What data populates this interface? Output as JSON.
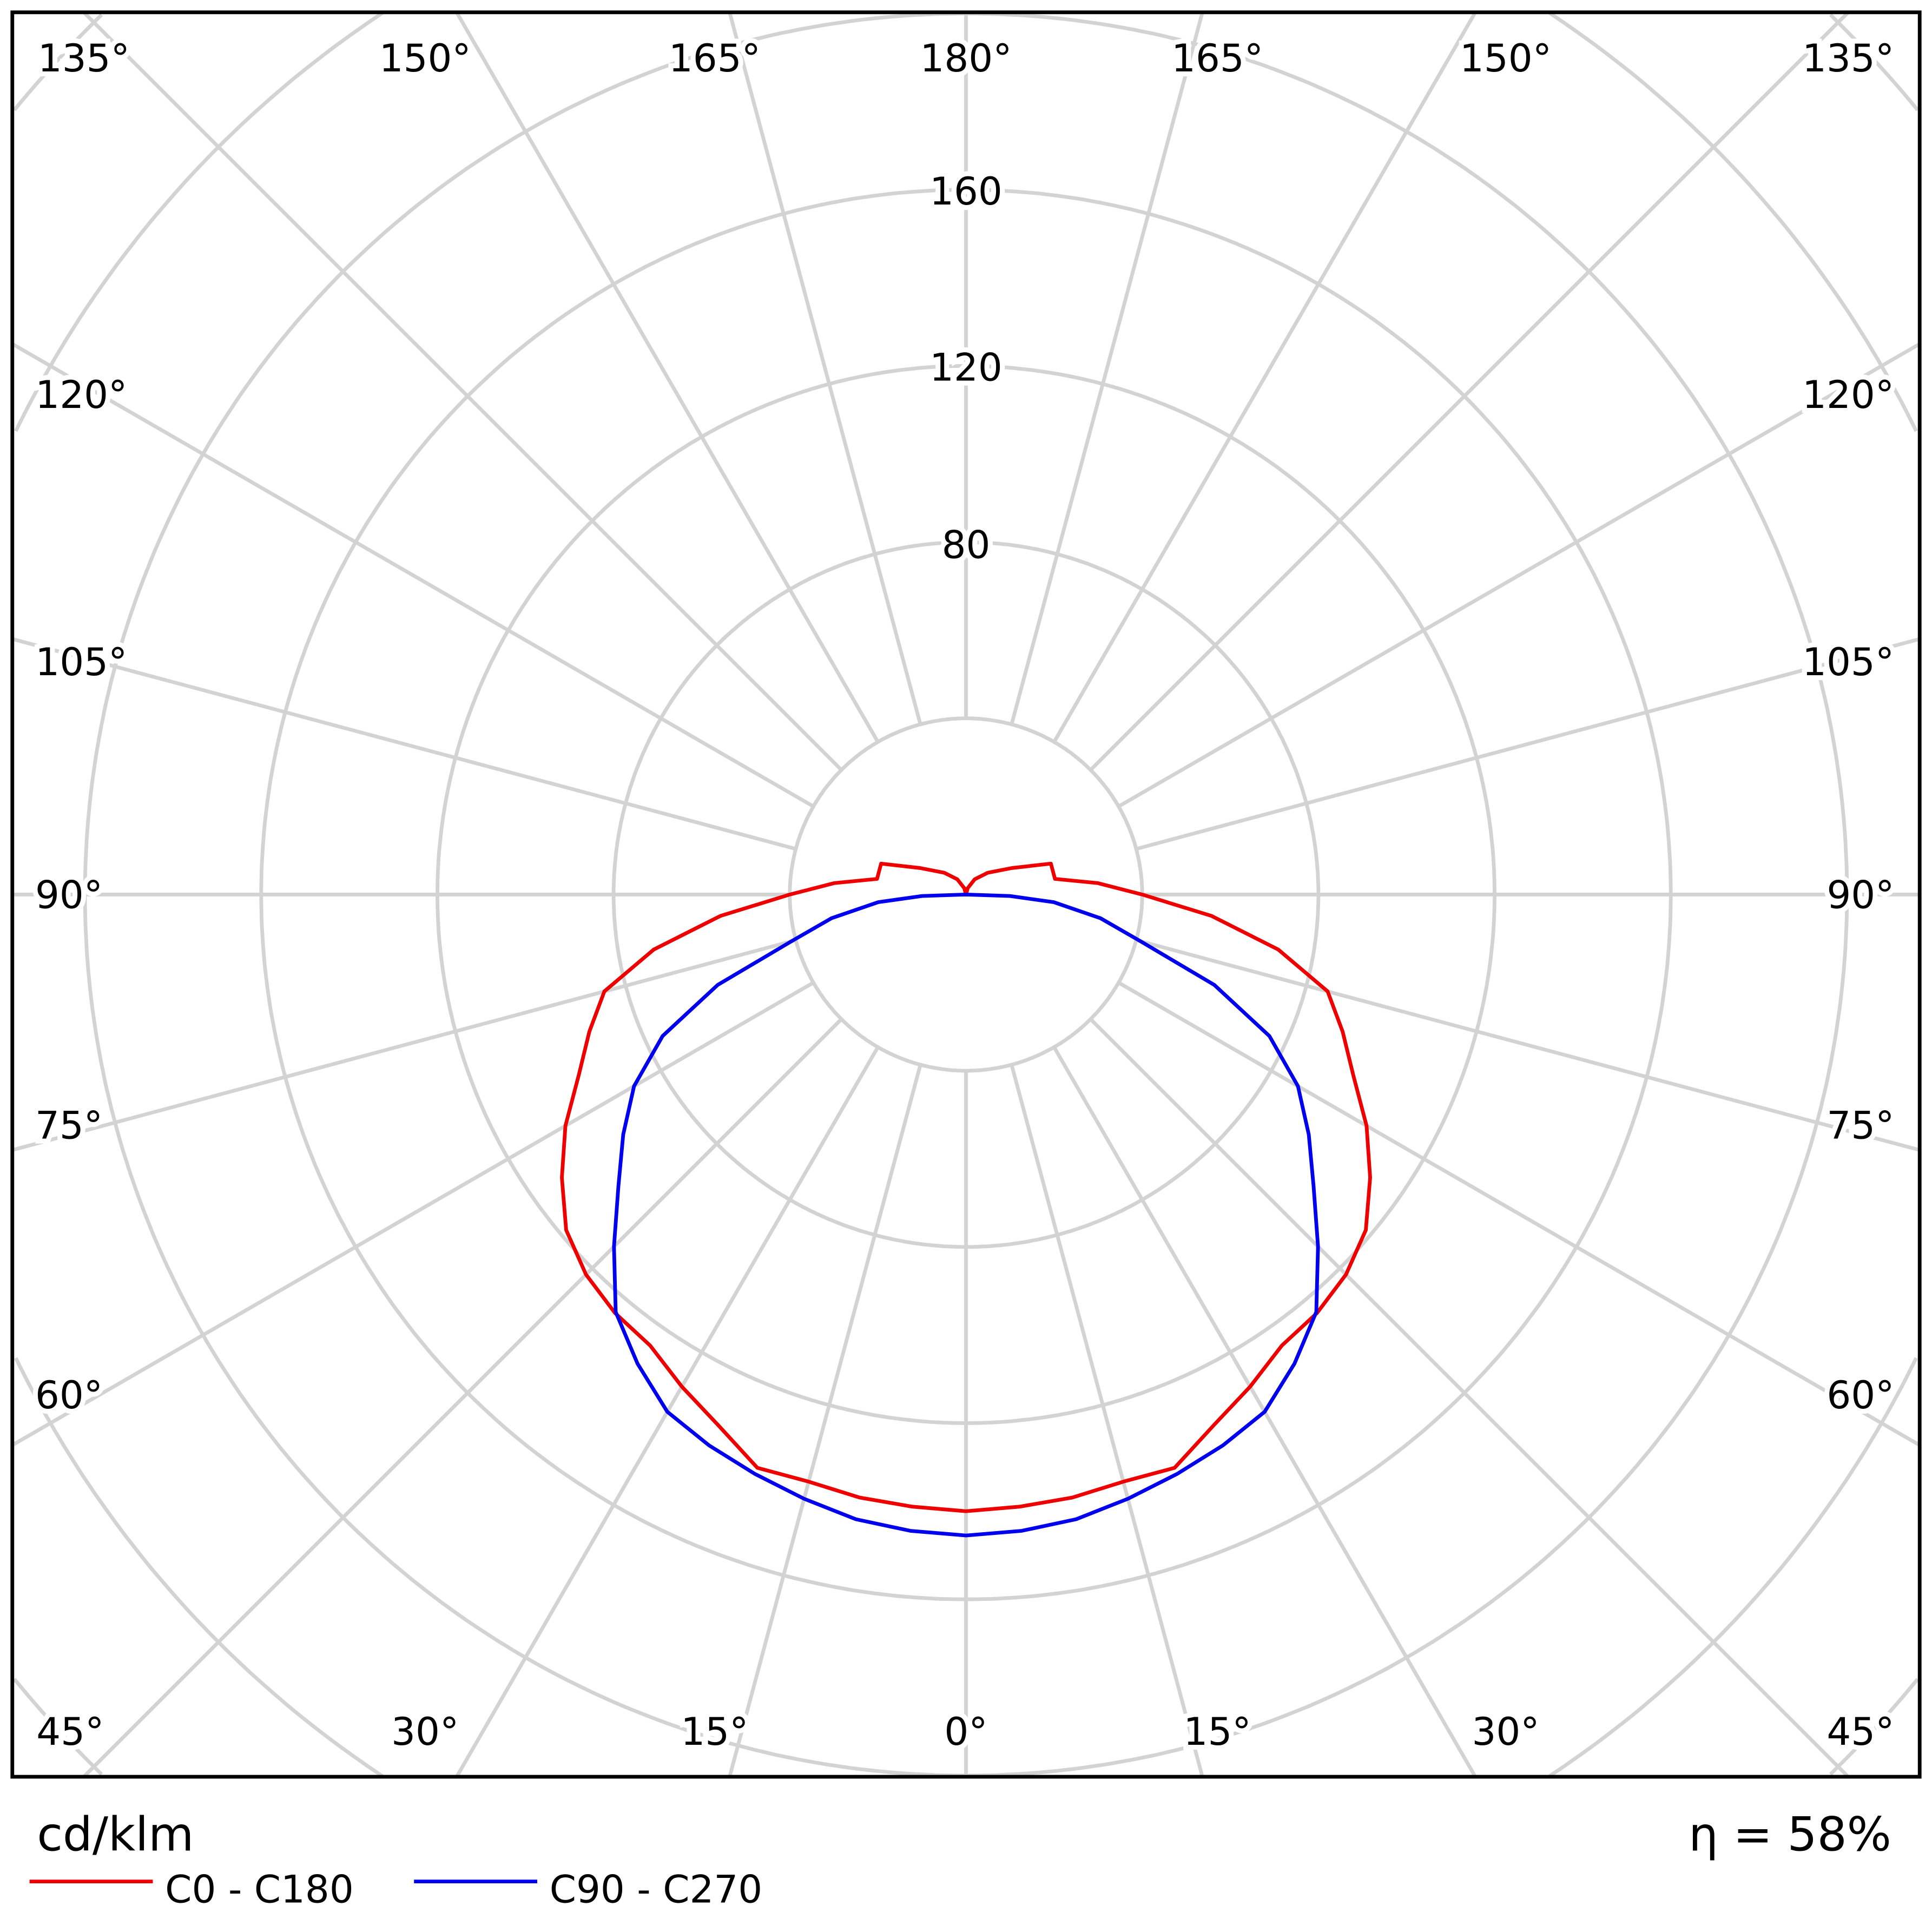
{
  "chart_data": {
    "type": "polar",
    "unit_label": "cd/klm",
    "efficiency_label": "η = 58%",
    "radial_ticks": [
      40,
      80,
      120,
      160,
      200,
      240,
      280
    ],
    "radial_tick_labels": [
      "80",
      "120",
      "160"
    ],
    "angle_labels": {
      "top": [
        "135°",
        "150°",
        "165°",
        "180°",
        "165°",
        "150°",
        "135°"
      ],
      "left": [
        "120°",
        "105°",
        "90°",
        "75°",
        "60°"
      ],
      "right": [
        "120°",
        "105°",
        "90°",
        "75°",
        "60°"
      ],
      "bottom": [
        "45°",
        "30°",
        "15°",
        "0°",
        "15°",
        "30°",
        "45°"
      ]
    },
    "grid": true,
    "grid_color": "#d3d3d3",
    "legend_position": "bottom-left",
    "series": [
      {
        "name": "C0 - C180",
        "color": "#ee0000",
        "angles": [
          0,
          5,
          10,
          15,
          20,
          25,
          30,
          35,
          40,
          45,
          50,
          55,
          60,
          65,
          70,
          75,
          80,
          85,
          90,
          95,
          100,
          110,
          120,
          135,
          150,
          165,
          180
        ],
        "values": [
          140,
          139.5,
          139,
          138,
          138.5,
          133,
          129,
          125,
          124,
          122,
          118.5,
          112,
          105,
          97,
          91,
          85,
          72,
          56,
          40,
          30,
          20.5,
          20.5,
          12,
          7,
          4,
          1.5,
          0
        ]
      },
      {
        "name": "C90 - C270",
        "color": "#0000ee",
        "angles": [
          0,
          5,
          10,
          15,
          20,
          25,
          30,
          35,
          40,
          45,
          50,
          55,
          60,
          65,
          70,
          75,
          80,
          85,
          88,
          90
        ],
        "values": [
          145.5,
          145,
          144,
          142,
          140,
          138,
          135.6,
          130,
          123.7,
          113,
          103,
          95,
          87,
          76,
          60,
          41,
          31,
          20,
          10,
          0
        ]
      }
    ]
  }
}
